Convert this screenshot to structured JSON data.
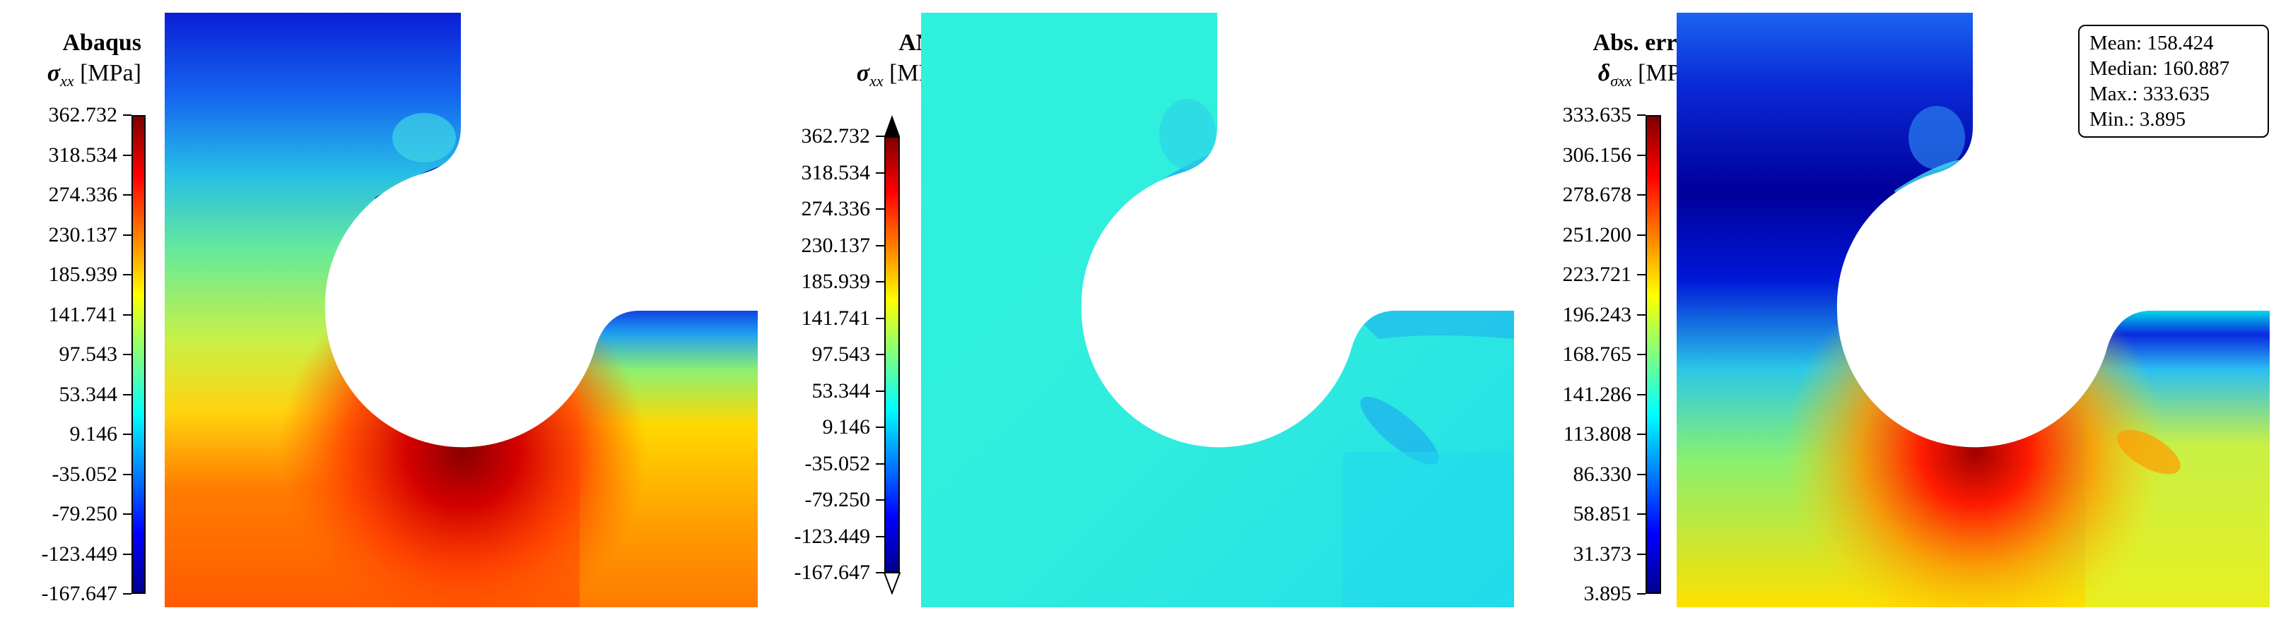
{
  "colors": {
    "jet": [
      "#00008f",
      "#0000ff",
      "#007fff",
      "#00ffff",
      "#7fff7f",
      "#ffff00",
      "#ff7f00",
      "#ff0000",
      "#7f0000"
    ]
  },
  "panels": [
    {
      "id": "abaqus",
      "title": "Abaqus",
      "quantity_symbol": "σ",
      "quantity_subscript": "xx",
      "unit": "[MPa]",
      "ticks": [
        "362.732",
        "318.534",
        "274.336",
        "230.137",
        "185.939",
        "141.741",
        "97.543",
        "53.344",
        "9.146",
        "-35.052",
        "-79.250",
        "-123.449",
        "-167.647"
      ],
      "colorbar_extend": "none"
    },
    {
      "id": "ann",
      "title": "ANN",
      "quantity_symbol": "σ",
      "quantity_subscript": "xx",
      "unit": "[MPa]",
      "ticks": [
        "362.732",
        "318.534",
        "274.336",
        "230.137",
        "185.939",
        "141.741",
        "97.543",
        "53.344",
        "9.146",
        "-35.052",
        "-79.250",
        "-123.449",
        "-167.647"
      ],
      "colorbar_extend": "both"
    },
    {
      "id": "abs-error",
      "title": "Abs. error",
      "quantity_symbol": "δ",
      "quantity_subscript": "σxx",
      "unit": "[MPa]",
      "ticks": [
        "333.635",
        "306.156",
        "278.678",
        "251.200",
        "223.721",
        "196.243",
        "168.765",
        "141.286",
        "113.808",
        "86.330",
        "58.851",
        "31.373",
        "3.895"
      ],
      "colorbar_extend": "none"
    }
  ],
  "stats": {
    "mean": "Mean: 158.424",
    "median": "Median: 160.887",
    "max": "Max.: 333.635",
    "min": "Min.: 3.895"
  }
}
